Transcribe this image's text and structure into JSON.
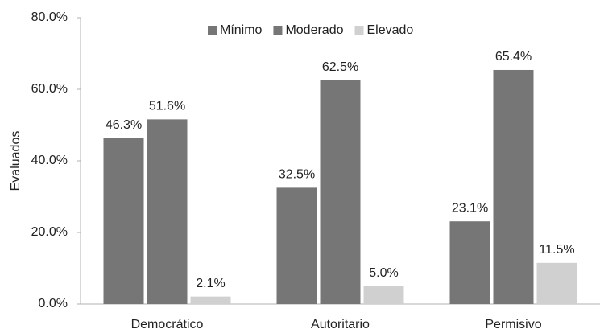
{
  "chart_data": {
    "type": "bar",
    "ylabel": "Evaluados",
    "categories": [
      "Democrático",
      "Autoritario",
      "Permisivo"
    ],
    "series": [
      {
        "name": "Mínimo",
        "color": "#767676",
        "values": [
          46.3,
          32.5,
          23.1
        ],
        "value_labels": [
          "46.3%",
          "32.5%",
          "23.1%"
        ]
      },
      {
        "name": "Moderado",
        "color": "#767676",
        "values": [
          51.6,
          62.5,
          65.4
        ],
        "value_labels": [
          "51.6%",
          "62.5%",
          "65.4%"
        ]
      },
      {
        "name": "Elevado",
        "color": "#d0d0d0",
        "values": [
          2.1,
          5.0,
          11.5
        ],
        "value_labels": [
          "2.1%",
          "5.0%",
          "11.5%"
        ]
      }
    ],
    "ylim": [
      0,
      80
    ],
    "yticks": [
      {
        "value": 0,
        "label": "0.0%"
      },
      {
        "value": 20,
        "label": "20.0%"
      },
      {
        "value": 40,
        "label": "40.0%"
      },
      {
        "value": 60,
        "label": "60.0%"
      },
      {
        "value": 80,
        "label": "80.0%"
      }
    ],
    "grid": false,
    "legend": "top"
  }
}
